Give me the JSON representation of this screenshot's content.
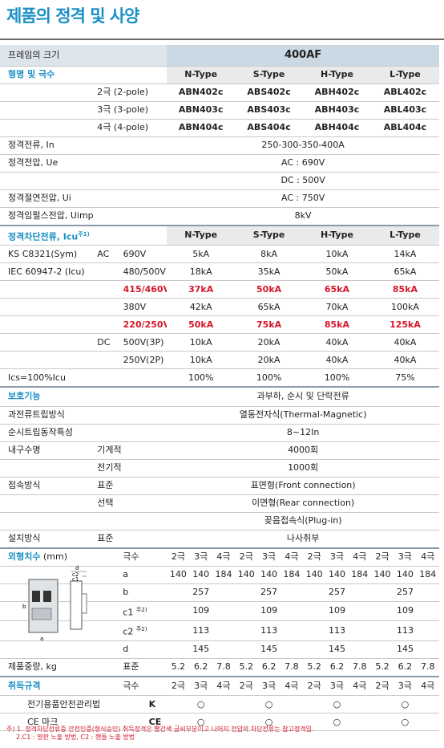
{
  "title": "제품의 정격 및 사양",
  "frame": {
    "label": "프레임의 크기",
    "value": "400AF"
  },
  "model": {
    "label": "형명 및 극수",
    "types": [
      "N-Type",
      "S-Type",
      "H-Type",
      "L-Type"
    ],
    "rows": [
      {
        "pole": "2극 (2-pole)",
        "vals": [
          "ABN402c",
          "ABS402c",
          "ABH402c",
          "ABL402c"
        ]
      },
      {
        "pole": "3극 (3-pole)",
        "vals": [
          "ABN403c",
          "ABS403c",
          "ABH403c",
          "ABL403c"
        ]
      },
      {
        "pole": "4극 (4-pole)",
        "vals": [
          "ABN404c",
          "ABS404c",
          "ABH404c",
          "ABL404c"
        ]
      }
    ]
  },
  "ratings": {
    "in": {
      "label": "정격전류, In",
      "value": "250-300-350-400A"
    },
    "ue": {
      "label": "정격전압, Ue",
      "ac": "AC : 690V",
      "dc": "DC : 500V"
    },
    "ui": {
      "label": "정격절연전압, Ui",
      "value": "AC : 750V"
    },
    "uimp": {
      "label": "정격임펄스전압, Uimp",
      "value": "8kV"
    }
  },
  "icu": {
    "label": "정격차단전류, Icu",
    "note": "주1)",
    "std1": "KS C8321(Sym)",
    "std2": "IEC 60947-2 (Icu)",
    "ac": "AC",
    "dc": "DC",
    "types": [
      "N-Type",
      "S-Type",
      "H-Type",
      "L-Type"
    ],
    "rows": [
      {
        "v": "690V",
        "vals": [
          "5kA",
          "8kA",
          "10kA",
          "14kA"
        ]
      },
      {
        "v": "480/500V",
        "vals": [
          "18kA",
          "35kA",
          "50kA",
          "65kA"
        ]
      },
      {
        "v": "415/460V",
        "vals": [
          "37kA",
          "50kA",
          "65kA",
          "85kA"
        ]
      },
      {
        "v": "380V",
        "vals": [
          "42kA",
          "65kA",
          "70kA",
          "100kA"
        ]
      },
      {
        "v": "220/250V",
        "vals": [
          "50kA",
          "75kA",
          "85kA",
          "125kA"
        ]
      },
      {
        "v": "500V(3P)",
        "vals": [
          "10kA",
          "20kA",
          "40kA",
          "40kA"
        ]
      },
      {
        "v": "250V(2P)",
        "vals": [
          "10kA",
          "20kA",
          "40kA",
          "40kA"
        ]
      }
    ],
    "ics": {
      "label": "Ics=100%Icu",
      "vals": [
        "100%",
        "100%",
        "100%",
        "75%"
      ]
    }
  },
  "protect": {
    "label": "보호기능",
    "value": "과부하, 순시 및 단락전류",
    "trip": {
      "label": "과전류트립방식",
      "value": "열동전자식(Thermal-Magnetic)"
    },
    "inst": {
      "label": "순시트립동작특성",
      "value": "8~12In"
    },
    "life": {
      "label": "내구수명",
      "mech": "기계적",
      "mech_v": "4000회",
      "elec": "전기적",
      "elec_v": "1000회"
    },
    "conn": {
      "label": "접속방식",
      "std": "표준",
      "std_v": "표면형(Front connection)",
      "opt": "선택",
      "opt_v1": "이면형(Rear connection)",
      "opt_v2": "꽂음접속식(Plug-in)"
    },
    "inst_m": {
      "label": "설치방식",
      "std": "표준",
      "value": "나사취부"
    }
  },
  "dims": {
    "label": "외형치수",
    "unit": "(mm)",
    "poles_label": "극수",
    "poles": [
      "2극",
      "3극",
      "4극"
    ],
    "a": {
      "label": "a",
      "vals": [
        "140",
        "140",
        "184"
      ]
    },
    "b": {
      "label": "b",
      "value": "257"
    },
    "c1": {
      "label": "c1",
      "note": "주2)",
      "value": "109"
    },
    "c2": {
      "label": "c2",
      "note": "주2)",
      "value": "113"
    },
    "d": {
      "label": "d",
      "value": "145"
    },
    "weight": {
      "label": "제품중량, kg",
      "std": "표준",
      "vals": [
        "5.2",
        "6.2",
        "7.8"
      ]
    },
    "diag_labels": {
      "a": "a",
      "b": "b",
      "d": "d",
      "c2": "c2",
      "c1": "c1"
    }
  },
  "cert": {
    "label": "취득규격",
    "poles_label": "극수",
    "poles": [
      "2극",
      "3극",
      "4극"
    ],
    "kc": {
      "label": "전기용품안전관리법",
      "mark": "K",
      "ok": "○"
    },
    "ce": {
      "label": "CE 마크",
      "mark": "CE",
      "ok": "○"
    }
  },
  "footnote": {
    "l1": "주) 1. 정격차단전류중 안전인증(형식승인) 취득정격은 빨간색 글씨부분이고 나머지 전압의 차단전류는 참고정격임.",
    "l2": "2.C1 : 명판 노출 방법, C2 : 핸들 노출 방법"
  },
  "colors": {
    "accent": "#1a8fc5",
    "red": "#d4182c",
    "header": "#cbd9e4"
  }
}
